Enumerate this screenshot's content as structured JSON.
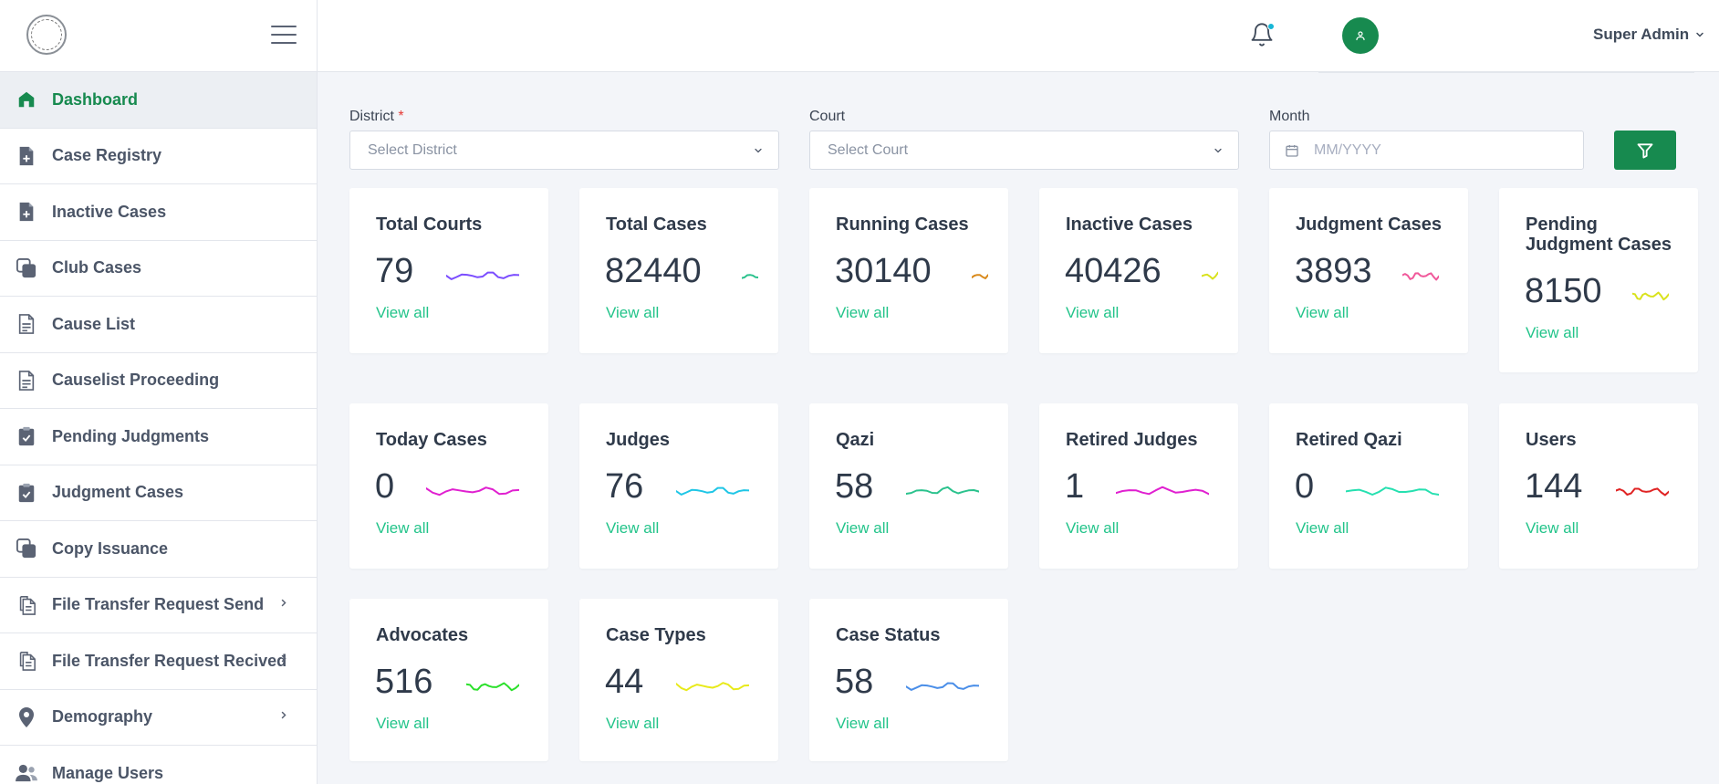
{
  "sidebar": {
    "items": [
      {
        "label": "Dashboard",
        "icon": "home-icon",
        "active": true
      },
      {
        "label": "Case Registry",
        "icon": "file-plus-icon"
      },
      {
        "label": "Inactive Cases",
        "icon": "file-plus-icon"
      },
      {
        "label": "Club Cases",
        "icon": "copy-icon"
      },
      {
        "label": "Cause List",
        "icon": "document-icon"
      },
      {
        "label": "Causelist Proceeding",
        "icon": "document-icon"
      },
      {
        "label": "Pending Judgments",
        "icon": "clipboard-check-icon"
      },
      {
        "label": "Judgment Cases",
        "icon": "clipboard-check-icon"
      },
      {
        "label": "Copy Issuance",
        "icon": "copy-icon"
      },
      {
        "label": "File Transfer Request Send",
        "icon": "files-icon",
        "has_children": true
      },
      {
        "label": "File Transfer Request Recived",
        "icon": "files-icon",
        "has_children": true
      },
      {
        "label": "Demography",
        "icon": "map-pin-icon",
        "has_children": true
      },
      {
        "label": "Manage Users",
        "icon": "users-icon"
      }
    ]
  },
  "header": {
    "user_name": "Super Admin"
  },
  "filters": {
    "district_label": "District",
    "district_required": "*",
    "district_placeholder": "Select District",
    "court_label": "Court",
    "court_placeholder": "Select Court",
    "month_label": "Month",
    "month_placeholder": "MM/YYYY"
  },
  "colors": {
    "brand": "#178a4f",
    "link": "#23c48a"
  },
  "cards": [
    {
      "title": "Total Courts",
      "value": "79",
      "link": "View all",
      "spark_color": "#7b4dff"
    },
    {
      "title": "Total Cases",
      "value": "82440",
      "link": "View all",
      "spark_color": "#2bc28d"
    },
    {
      "title": "Running Cases",
      "value": "30140",
      "link": "View all",
      "spark_color": "#d98a1c"
    },
    {
      "title": "Inactive Cases",
      "value": "40426",
      "link": "View all",
      "spark_color": "#d9e21d"
    },
    {
      "title": "Judgment Cases",
      "value": "3893",
      "link": "View all",
      "spark_color": "#f0589a"
    },
    {
      "title": "Pending Judgment Cases",
      "value": "8150",
      "link": "View all",
      "spark_color": "#d9e21d"
    },
    {
      "title": "Today Cases",
      "value": "0",
      "link": "View all",
      "spark_color": "#e020d0"
    },
    {
      "title": "Judges",
      "value": "76",
      "link": "View all",
      "spark_color": "#1fc6e6"
    },
    {
      "title": "Qazi",
      "value": "58",
      "link": "View all",
      "spark_color": "#2bc28d"
    },
    {
      "title": "Retired Judges",
      "value": "1",
      "link": "View all",
      "spark_color": "#e020d0"
    },
    {
      "title": "Retired Qazi",
      "value": "0",
      "link": "View all",
      "spark_color": "#26e0b0"
    },
    {
      "title": "Users",
      "value": "144",
      "link": "View all",
      "spark_color": "#e02424"
    },
    {
      "title": "Advocates",
      "value": "516",
      "link": "View all",
      "spark_color": "#2be02b"
    },
    {
      "title": "Case Types",
      "value": "44",
      "link": "View all",
      "spark_color": "#e8ea1a"
    },
    {
      "title": "Case Status",
      "value": "58",
      "link": "View all",
      "spark_color": "#4a8ee8"
    }
  ]
}
